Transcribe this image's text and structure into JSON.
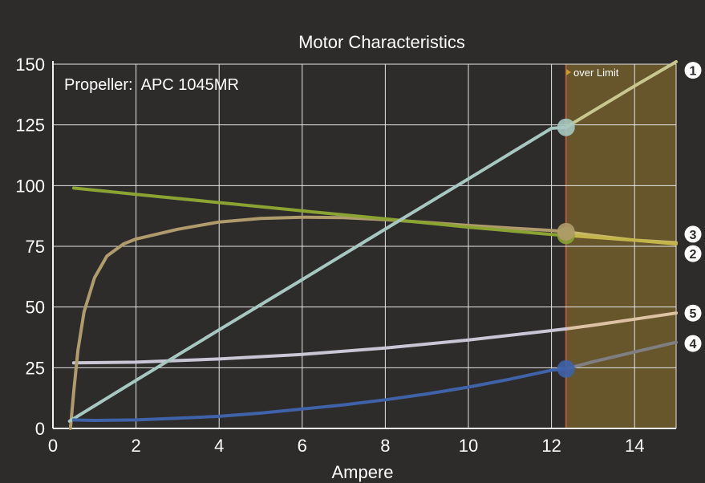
{
  "chart_data": {
    "type": "line",
    "title": "Motor Characteristics",
    "xlabel": "Ampere",
    "ylabel": "",
    "xlim": [
      0,
      15
    ],
    "ylim": [
      0,
      150
    ],
    "x_ticks": [
      0,
      2,
      4,
      6,
      8,
      10,
      12,
      14
    ],
    "y_ticks": [
      0,
      25,
      50,
      75,
      100,
      125,
      150
    ],
    "grid": true,
    "annotation": "Propeller:  APC 1045MR",
    "limit": {
      "label": "over Limit",
      "x_start": 12.35,
      "x_end": 15,
      "color": "#6d5a2c"
    },
    "series": [
      {
        "name": "1",
        "color": "#a6c8c0",
        "color_over": "#c9c78f",
        "x": [
          0.4,
          2,
          4,
          6,
          8,
          10,
          12,
          12.35,
          14,
          15
        ],
        "y": [
          3,
          19.8,
          40.6,
          61.3,
          82.1,
          102.8,
          123.6,
          124,
          141,
          151
        ],
        "marker": [
          12.35,
          124
        ]
      },
      {
        "name": "2",
        "color": "#8aa332",
        "color_over": "#c3b54a",
        "x": [
          0.5,
          2,
          4,
          6,
          8,
          10,
          12,
          12.35,
          14,
          15
        ],
        "y": [
          99,
          96.4,
          93,
          89.6,
          86.3,
          82.9,
          79.9,
          79.5,
          77.5,
          76
        ],
        "marker": [
          12.35,
          79.5
        ]
      },
      {
        "name": "3",
        "color": "#b09b6c",
        "color_over": "#c9b868",
        "x": [
          0.42,
          0.5,
          0.6,
          0.75,
          1,
          1.3,
          1.7,
          2,
          3,
          4,
          5,
          6,
          7,
          8,
          9,
          10,
          11,
          12,
          12.35,
          13,
          14,
          15
        ],
        "y": [
          0,
          15,
          32,
          48,
          62,
          71,
          76,
          78,
          82,
          85,
          86.5,
          87,
          86.8,
          86,
          84.8,
          83.6,
          82.5,
          81.5,
          81,
          79.5,
          77.5,
          76.5
        ],
        "marker": [
          12.35,
          81
        ]
      },
      {
        "name": "4",
        "color": "#3f62a8",
        "color_over": "#7f7f82",
        "x": [
          0.5,
          1,
          2,
          3,
          4,
          5,
          6,
          7,
          8,
          9,
          10,
          11,
          12,
          12.35,
          13,
          14,
          15
        ],
        "y": [
          3.5,
          3.3,
          3.5,
          4.2,
          5,
          6.3,
          8,
          9.7,
          11.8,
          14.2,
          17,
          20.3,
          24,
          24.5,
          27.5,
          31.5,
          35.5
        ],
        "marker": [
          12.35,
          24.5
        ]
      },
      {
        "name": "5",
        "color": "#c9c6d6",
        "color_over": "#ddc3a3",
        "x": [
          0.5,
          2,
          4,
          6,
          8,
          10,
          12,
          12.35,
          13,
          14,
          15
        ],
        "y": [
          27,
          27.3,
          28.6,
          30.5,
          33.1,
          36.4,
          40.3,
          41,
          42.5,
          45,
          47.5
        ]
      }
    ],
    "legend_labels": [
      {
        "text": "1",
        "y": 147.5
      },
      {
        "text": "3",
        "y": 80
      },
      {
        "text": "2",
        "y": 72
      },
      {
        "text": "5",
        "y": 47.5
      },
      {
        "text": "4",
        "y": 35
      }
    ]
  }
}
